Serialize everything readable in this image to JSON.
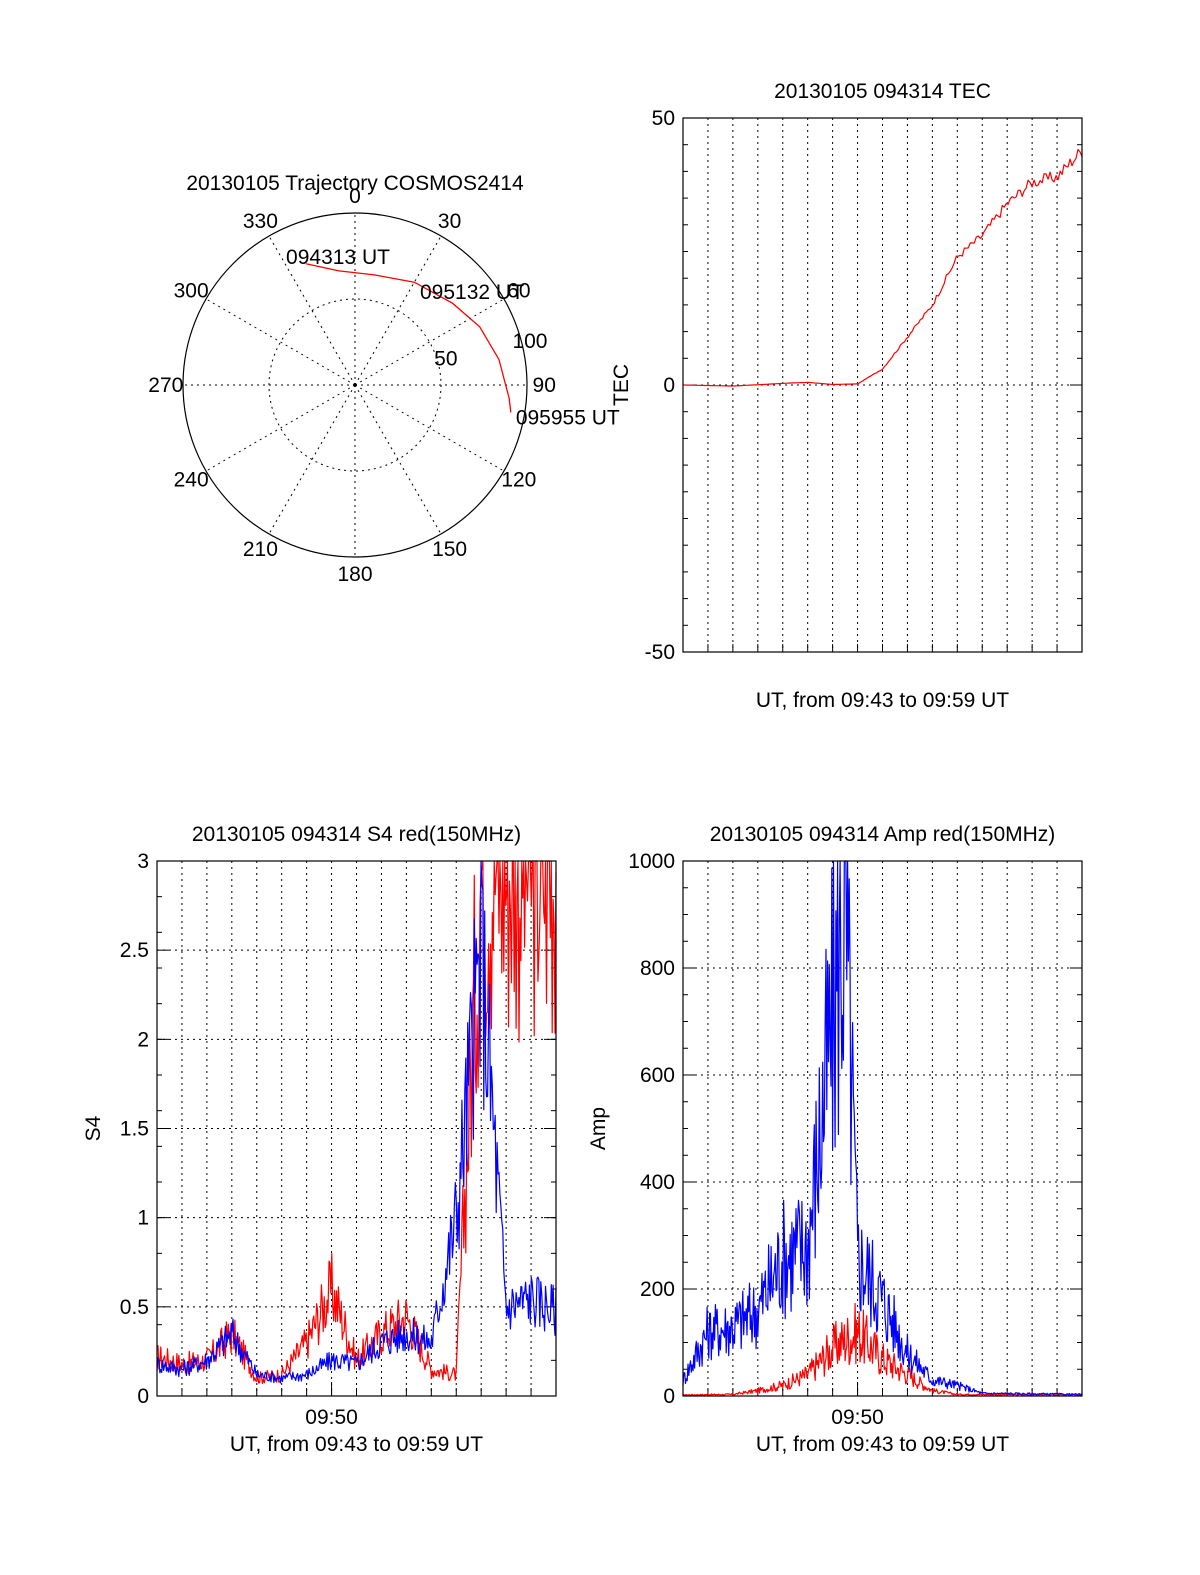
{
  "chart_data": [
    {
      "type": "polar",
      "title": "20130105 Trajectory COSMOS2414",
      "azimuth_labels": [
        "0",
        "30",
        "60",
        "90",
        "120",
        "150",
        "180",
        "210",
        "240",
        "270",
        "300",
        "330"
      ],
      "radial_labels": [
        "50",
        "100"
      ],
      "rlim": [
        0,
        100
      ],
      "grid": true,
      "series": [
        {
          "color": "#ff0000",
          "points": [
            {
              "az": 338,
              "zenith": 76
            },
            {
              "az": 352,
              "zenith": 67
            },
            {
              "az": 10,
              "zenith": 65
            },
            {
              "az": 30,
              "zenith": 69
            },
            {
              "az": 50,
              "zenith": 74
            },
            {
              "az": 65,
              "zenith": 80
            },
            {
              "az": 80,
              "zenith": 85
            },
            {
              "az": 95,
              "zenith": 90
            },
            {
              "az": 100,
              "zenith": 92
            }
          ]
        }
      ],
      "annotations": [
        {
          "text": "094313 UT",
          "az": 338,
          "zenith": 76
        },
        {
          "text": "095132 UT",
          "az": 45,
          "zenith": 74
        },
        {
          "text": "095955 UT",
          "az": 100,
          "zenith": 92
        }
      ]
    },
    {
      "type": "line",
      "title": "20130105 094314 TEC",
      "xlabel": "UT, from 09:43 to 09:59 UT",
      "ylabel": "TEC",
      "xlim": [
        "09:43",
        "09:59"
      ],
      "ylim": [
        -50,
        50
      ],
      "yticks": [
        "50",
        "0",
        "-50"
      ],
      "grid": true,
      "series": [
        {
          "color": "#ff0000",
          "points": [
            [
              "09:43",
              0
            ],
            [
              "09:45",
              -0.2
            ],
            [
              "09:47",
              0.3
            ],
            [
              "09:48",
              0.5
            ],
            [
              "09:49",
              0.1
            ],
            [
              "09:50",
              0.2
            ],
            [
              "09:51",
              3
            ],
            [
              "09:52",
              9
            ],
            [
              "09:53",
              15
            ],
            [
              "09:54",
              24
            ],
            [
              "09:55",
              28
            ],
            [
              "09:56",
              34
            ],
            [
              "09:57",
              38
            ],
            [
              "09:58",
              39
            ],
            [
              "09:59",
              44
            ]
          ]
        }
      ]
    },
    {
      "type": "line",
      "title": "20130105 094314 S4 red(150MHz)",
      "xlabel": "UT, from 09:43 to 09:59 UT",
      "ylabel": "S4",
      "xlim": [
        "09:43",
        "09:59"
      ],
      "ylim": [
        0,
        3
      ],
      "xticks": [
        "09:50"
      ],
      "yticks": [
        "0",
        "0.5",
        "1",
        "1.5",
        "2",
        "2.5",
        "3"
      ],
      "grid": true,
      "series": [
        {
          "color": "#ff0000",
          "points": [
            [
              "09:43",
              0.22
            ],
            [
              "09:44",
              0.18
            ],
            [
              "09:45",
              0.2
            ],
            [
              "09:46",
              0.35
            ],
            [
              "09:47",
              0.1
            ],
            [
              "09:48",
              0.12
            ],
            [
              "09:49",
              0.3
            ],
            [
              "09:50",
              0.6
            ],
            [
              "09:51",
              0.2
            ],
            [
              "09:52",
              0.35
            ],
            [
              "09:53",
              0.45
            ],
            [
              "09:54",
              0.15
            ],
            [
              "09:55",
              0.12
            ],
            [
              "09:56",
              3.0
            ],
            [
              "09:57",
              3.0
            ],
            [
              "09:58",
              3.0
            ],
            [
              "09:59",
              3.0
            ]
          ]
        },
        {
          "color": "#0000ff",
          "points": [
            [
              "09:43",
              0.18
            ],
            [
              "09:44",
              0.15
            ],
            [
              "09:45",
              0.2
            ],
            [
              "09:46",
              0.35
            ],
            [
              "09:47",
              0.12
            ],
            [
              "09:48",
              0.1
            ],
            [
              "09:49",
              0.12
            ],
            [
              "09:50",
              0.2
            ],
            [
              "09:51",
              0.18
            ],
            [
              "09:52",
              0.3
            ],
            [
              "09:53",
              0.35
            ],
            [
              "09:54",
              0.3
            ],
            [
              "09:55",
              1.0
            ],
            [
              "09:56",
              2.5
            ],
            [
              "09:57",
              0.5
            ],
            [
              "09:58",
              0.55
            ],
            [
              "09:59",
              0.48
            ]
          ]
        }
      ]
    },
    {
      "type": "line",
      "title": "20130105 094314 Amp red(150MHz)",
      "xlabel": "UT, from 09:43 to 09:59 UT",
      "ylabel": "Amp",
      "xlim": [
        "09:43",
        "09:59"
      ],
      "ylim": [
        0,
        1000
      ],
      "xticks": [
        "09:50"
      ],
      "yticks": [
        "0",
        "200",
        "400",
        "600",
        "800",
        "1000"
      ],
      "grid": true,
      "series": [
        {
          "color": "#ff0000",
          "points": [
            [
              "09:43",
              2
            ],
            [
              "09:45",
              3
            ],
            [
              "09:46",
              10
            ],
            [
              "09:47",
              20
            ],
            [
              "09:48",
              40
            ],
            [
              "09:49",
              90
            ],
            [
              "09:50",
              120
            ],
            [
              "09:51",
              70
            ],
            [
              "09:52",
              40
            ],
            [
              "09:53",
              10
            ],
            [
              "09:54",
              3
            ],
            [
              "09:59",
              2
            ]
          ]
        },
        {
          "color": "#0000ff",
          "points": [
            [
              "09:43",
              30
            ],
            [
              "09:44",
              120
            ],
            [
              "09:45",
              130
            ],
            [
              "09:46",
              160
            ],
            [
              "09:47",
              260
            ],
            [
              "09:48",
              280
            ],
            [
              "09:49",
              700
            ],
            [
              "09:49.5",
              920
            ],
            [
              "09:50",
              260
            ],
            [
              "09:51",
              180
            ],
            [
              "09:52",
              80
            ],
            [
              "09:53",
              30
            ],
            [
              "09:54",
              20
            ],
            [
              "09:55",
              5
            ],
            [
              "09:59",
              3
            ]
          ]
        }
      ]
    }
  ]
}
